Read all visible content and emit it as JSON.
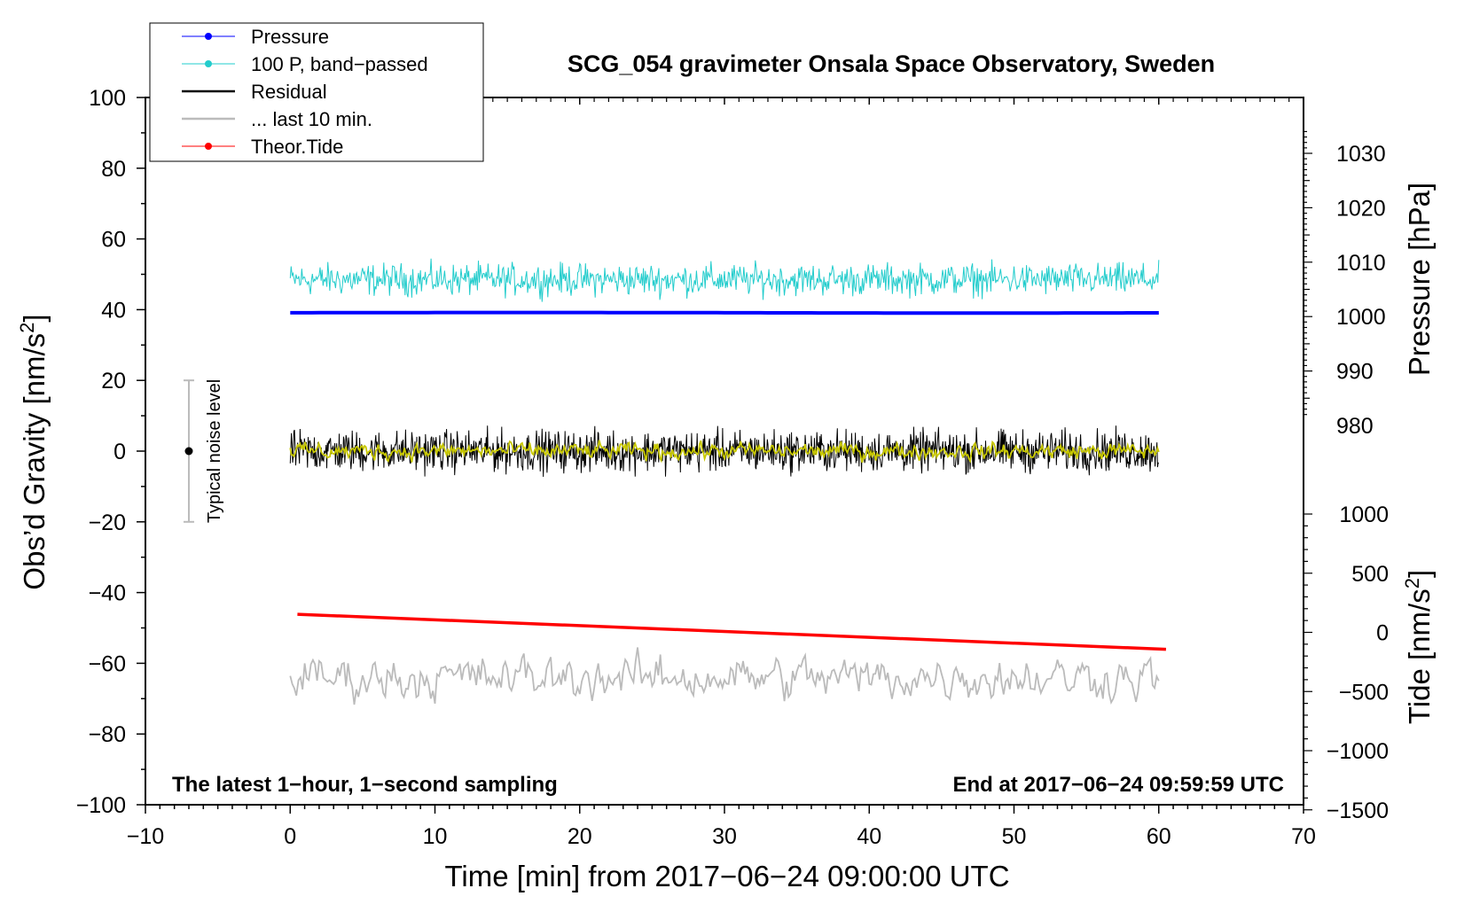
{
  "chart_data": {
    "type": "line",
    "title": "SCG_054 gravimeter Onsala Space Observatory, Sweden",
    "xlabel": "Time [min] from 2017−06−24 09:00:00 UTC",
    "ylabel_base": "Obs’d Gravity [nm/s",
    "ylabel_sup": "2",
    "ylabel_end": "]",
    "pressure_label": "Pressure [hPa]",
    "tide_label_base": "Tide [nm/s",
    "tide_label_sup": "2",
    "tide_label_end": "]",
    "xlim": [
      -10,
      70
    ],
    "ylim": [
      -100,
      100
    ],
    "pressure_lim": [
      975,
      1035
    ],
    "tide_lim": [
      -1500,
      1100
    ],
    "x_ticks": [
      -10,
      0,
      10,
      20,
      30,
      40,
      50,
      60,
      70
    ],
    "x_tick_labels": [
      "−10",
      "0",
      "10",
      "20",
      "30",
      "40",
      "50",
      "60",
      "70"
    ],
    "y_ticks": [
      -100,
      -80,
      -60,
      -40,
      -20,
      0,
      20,
      40,
      60,
      80,
      100
    ],
    "y_tick_labels": [
      "−100",
      "−80",
      "−60",
      "−40",
      "−20",
      "0",
      "20",
      "40",
      "60",
      "80",
      "100"
    ],
    "pressure_ticks": [
      980,
      990,
      1000,
      1010,
      1020,
      1030
    ],
    "pressure_tick_labels": [
      "980",
      "990",
      "1000",
      "1010",
      "1020",
      "1030"
    ],
    "tide_ticks": [
      -1500,
      -1000,
      -500,
      0,
      500,
      1000
    ],
    "tide_tick_labels": [
      "−1500",
      "−1000",
      "−500",
      "0",
      "500",
      "1000"
    ],
    "legend_location": "top-left",
    "legend": [
      {
        "label": "Pressure",
        "color": "#0000ff",
        "marker": true
      },
      {
        "label": "100 P, band−passed",
        "color": "#22cccc",
        "marker": true
      },
      {
        "label": "Residual",
        "color": "#000000",
        "marker": false
      },
      {
        "label": "... last 10 min.",
        "color": "#bbbbbb",
        "marker": false
      },
      {
        "label": "Theor.Tide",
        "color": "#ff0000",
        "marker": true
      }
    ],
    "annotations": {
      "left_footer": "The latest 1−hour, 1−second sampling",
      "right_footer": "End at 2017−06−24 09:59:59 UTC",
      "noise_label": "Typical noise level"
    },
    "noise_bar": {
      "x": -7,
      "center": 0,
      "low": -20,
      "high": 20
    },
    "series": [
      {
        "name": "Pressure",
        "color": "#0000ff",
        "axis": "pressure",
        "x_range": [
          0,
          60
        ],
        "level_hPa": 1000.7,
        "amplitude": 0.3
      },
      {
        "name": "100 P, band−passed",
        "color": "#22cccc",
        "axis": "gravity",
        "x_range": [
          0,
          60
        ],
        "center": 48.5,
        "amplitude": 7,
        "min": 37,
        "max": 59
      },
      {
        "name": "Residual",
        "color": "#000000",
        "axis": "gravity",
        "x_range": [
          0,
          60
        ],
        "center": 0,
        "amplitude": 9,
        "min": -17,
        "max": 14
      },
      {
        "name": "Residual (smoothed)",
        "color": "#c8c800",
        "axis": "gravity",
        "x_range": [
          0,
          60
        ],
        "center": 0,
        "amplitude": 3
      },
      {
        "name": "... last 10 min.",
        "color": "#bbbbbb",
        "axis": "gravity",
        "x_range": [
          0,
          60
        ],
        "center": -64,
        "amplitude": 7,
        "min": -72,
        "max": -51
      },
      {
        "name": "Theor.Tide",
        "color": "#ff0000",
        "axis": "tide",
        "x": [
          0.5,
          60.5
        ],
        "y": [
          153,
          -143
        ]
      }
    ]
  }
}
